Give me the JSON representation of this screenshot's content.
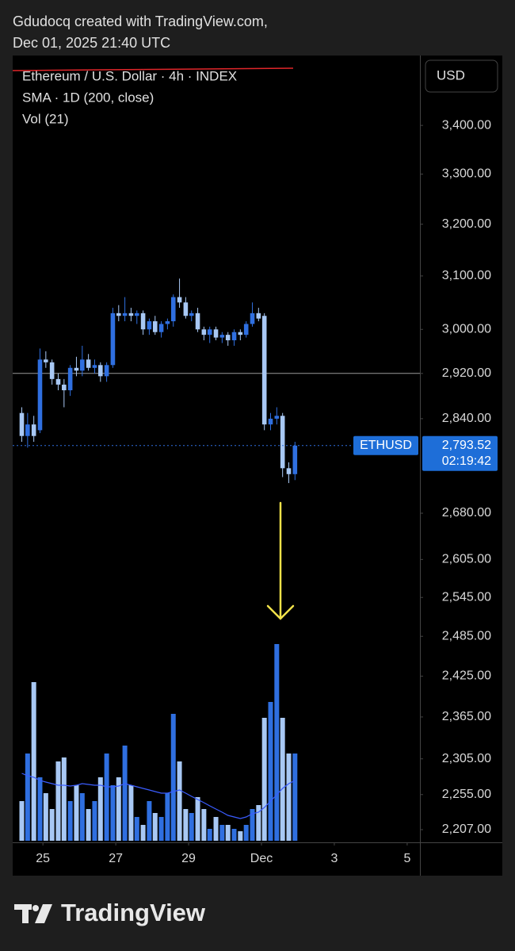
{
  "header": {
    "line1": "Gdudocq created with TradingView.com,",
    "line2": "Dec 01, 2025 21:40 UTC"
  },
  "footer": {
    "brand": "TradingView"
  },
  "chart_data": {
    "type": "candlestick",
    "legend": [
      "Ethereum / U.S. Dollar · 4h · INDEX",
      "SMA · 1D (200, close)",
      "Vol (21)"
    ],
    "currency_button": "USD",
    "log_scale": true,
    "ylim": [
      2192,
      3549
    ],
    "yticks": [
      {
        "value": 3400,
        "label": "3,400.00"
      },
      {
        "value": 3300,
        "label": "3,300.00"
      },
      {
        "value": 3200,
        "label": "3,200.00"
      },
      {
        "value": 3100,
        "label": "3,100.00"
      },
      {
        "value": 3000,
        "label": "3,000.00"
      },
      {
        "value": 2920,
        "label": "2,920.00"
      },
      {
        "value": 2840,
        "label": "2,840.00"
      },
      {
        "value": 2680,
        "label": "2,680.00"
      },
      {
        "value": 2605,
        "label": "2,605.00"
      },
      {
        "value": 2545,
        "label": "2,545.00"
      },
      {
        "value": 2485,
        "label": "2,485.00"
      },
      {
        "value": 2425,
        "label": "2,425.00"
      },
      {
        "value": 2365,
        "label": "2,365.00"
      },
      {
        "value": 2305,
        "label": "2,305.00"
      },
      {
        "value": 2255,
        "label": "2,255.00"
      },
      {
        "value": 2207,
        "label": "2,207.00"
      }
    ],
    "xlim": [
      24.17,
      35.35
    ],
    "xticks": [
      25,
      27,
      29,
      {
        "value": 31,
        "label": "Dec"
      },
      {
        "value": 33,
        "label": "3"
      },
      {
        "value": 35,
        "label": "5"
      }
    ],
    "horizontal_line": 2920,
    "up_color": "#2f6fe0",
    "down_color": "#a8c8f4",
    "x": [
      24.42,
      24.58,
      24.75,
      24.92,
      25.08,
      25.25,
      25.42,
      25.58,
      25.75,
      25.92,
      26.08,
      26.25,
      26.42,
      26.58,
      26.75,
      26.92,
      27.08,
      27.25,
      27.42,
      27.58,
      27.75,
      27.92,
      28.08,
      28.25,
      28.42,
      28.58,
      28.75,
      28.92,
      29.08,
      29.25,
      29.42,
      29.58,
      29.75,
      29.92,
      30.08,
      30.25,
      30.42,
      30.58,
      30.75,
      30.92,
      31.08,
      31.25,
      31.42,
      31.58,
      31.75,
      31.92
    ],
    "open": [
      2850,
      2810,
      2830,
      2820,
      2945,
      2940,
      2910,
      2900,
      2890,
      2930,
      2925,
      2945,
      2930,
      2935,
      2915,
      2935,
      3030,
      3025,
      3030,
      3025,
      3030,
      3000,
      3015,
      2995,
      3010,
      3015,
      3060,
      3050,
      3025,
      3030,
      3000,
      2990,
      3000,
      2985,
      2990,
      2980,
      2995,
      2990,
      3010,
      3030,
      3025,
      2830,
      2840,
      2845,
      2755,
      2745
    ],
    "high": [
      2860,
      2850,
      2845,
      2965,
      2960,
      2945,
      2920,
      2910,
      2935,
      2950,
      2970,
      2955,
      2945,
      2940,
      2940,
      3040,
      3045,
      3060,
      3040,
      3035,
      3035,
      3020,
      3025,
      3015,
      3020,
      3065,
      3095,
      3060,
      3035,
      3040,
      3005,
      3005,
      3005,
      2995,
      2995,
      3000,
      3000,
      3015,
      3050,
      3040,
      3030,
      2850,
      2860,
      2850,
      2765,
      2800
    ],
    "low": [
      2800,
      2790,
      2800,
      2815,
      2930,
      2900,
      2890,
      2860,
      2880,
      2915,
      2915,
      2925,
      2920,
      2905,
      2905,
      2930,
      3015,
      3015,
      3015,
      3010,
      2990,
      2990,
      2990,
      2985,
      3000,
      3005,
      3040,
      3020,
      3015,
      2995,
      2980,
      2975,
      2980,
      2975,
      2970,
      2970,
      2980,
      2985,
      3005,
      3015,
      2820,
      2820,
      2830,
      2740,
      2730,
      2735
    ],
    "close": [
      2810,
      2830,
      2810,
      2945,
      2940,
      2910,
      2900,
      2890,
      2930,
      2925,
      2945,
      2930,
      2935,
      2915,
      2935,
      3030,
      3025,
      3030,
      3025,
      3030,
      3000,
      3015,
      2995,
      3010,
      3015,
      3060,
      3050,
      3025,
      3030,
      3000,
      2990,
      3000,
      2985,
      2990,
      2980,
      2995,
      2990,
      3010,
      3030,
      3020,
      2830,
      2840,
      2845,
      2755,
      2745,
      2793.52
    ],
    "last_price": {
      "value": 2793.52,
      "label": "2,793.52"
    },
    "price_tag": {
      "symbol": "ETHUSD",
      "countdown": "02:19:42"
    },
    "volume": [
      50,
      110,
      200,
      80,
      60,
      40,
      100,
      105,
      50,
      70,
      60,
      40,
      50,
      80,
      110,
      70,
      80,
      120,
      70,
      30,
      20,
      50,
      35,
      30,
      60,
      160,
      100,
      40,
      35,
      55,
      40,
      15,
      30,
      20,
      20,
      15,
      12,
      20,
      40,
      45,
      155,
      175,
      248,
      155,
      110,
      110
    ],
    "volume_ma": [
      85,
      82,
      80,
      76,
      74,
      72,
      70,
      70,
      69,
      70,
      72,
      71,
      70,
      70,
      68,
      68,
      69,
      72,
      70,
      68,
      66,
      64,
      62,
      60,
      60,
      62,
      64,
      60,
      56,
      52,
      48,
      44,
      40,
      36,
      32,
      30,
      28,
      30,
      34,
      36,
      42,
      50,
      58,
      66,
      72,
      76
    ],
    "volume_lim": [
      0,
      248
    ],
    "volume_ma_color": "#3a5cff"
  }
}
